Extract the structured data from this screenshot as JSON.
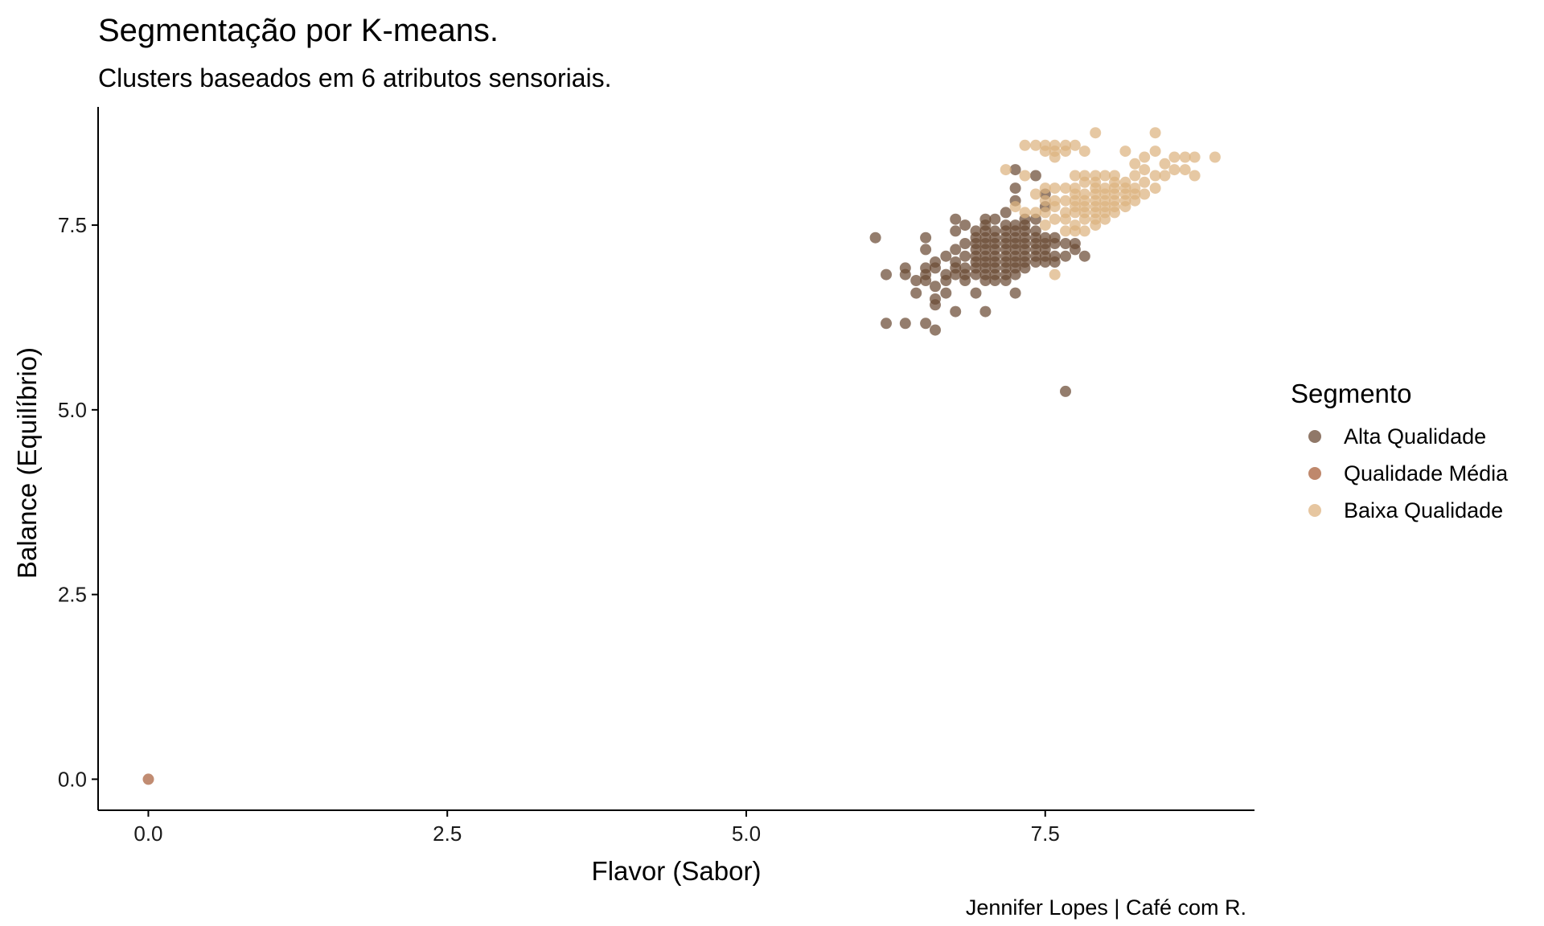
{
  "title": "Segmentação por K-means.",
  "subtitle": "Clusters baseados em 6 atributos sensoriais.",
  "caption": "Jennifer Lopes | Café com R.",
  "chart_data": {
    "type": "scatter",
    "xlabel": "Flavor (Sabor)",
    "ylabel": "Balance (Equilíbrio)",
    "xlim": [
      -0.42,
      9.25
    ],
    "ylim": [
      -0.42,
      9.1
    ],
    "x_ticks": [
      "0.0",
      "2.5",
      "5.0",
      "7.5"
    ],
    "y_ticks": [
      "0.0",
      "2.5",
      "5.0",
      "7.5"
    ],
    "grid": false,
    "legend": {
      "title": "Segmento",
      "position": "right"
    },
    "series": [
      {
        "name": "Alta Qualidade",
        "color": "#6b4b35",
        "points": [
          [
            6.08,
            7.33
          ],
          [
            6.17,
            6.83
          ],
          [
            6.17,
            6.17
          ],
          [
            6.33,
            6.17
          ],
          [
            6.33,
            6.92
          ],
          [
            6.33,
            6.83
          ],
          [
            6.42,
            6.75
          ],
          [
            6.42,
            6.58
          ],
          [
            6.5,
            7.33
          ],
          [
            6.5,
            7.17
          ],
          [
            6.5,
            6.92
          ],
          [
            6.5,
            6.83
          ],
          [
            6.5,
            6.75
          ],
          [
            6.5,
            6.17
          ],
          [
            6.58,
            6.67
          ],
          [
            6.58,
            6.5
          ],
          [
            6.58,
            6.42
          ],
          [
            6.58,
            6.08
          ],
          [
            6.58,
            6.92
          ],
          [
            6.58,
            7.0
          ],
          [
            6.67,
            6.83
          ],
          [
            6.67,
            6.58
          ],
          [
            6.67,
            6.75
          ],
          [
            6.67,
            7.08
          ],
          [
            6.75,
            7.58
          ],
          [
            6.75,
            7.42
          ],
          [
            6.75,
            7.17
          ],
          [
            6.75,
            7.0
          ],
          [
            6.75,
            6.92
          ],
          [
            6.75,
            6.33
          ],
          [
            6.75,
            6.83
          ],
          [
            6.83,
            7.5
          ],
          [
            6.83,
            7.25
          ],
          [
            6.83,
            7.08
          ],
          [
            6.83,
            6.92
          ],
          [
            6.83,
            6.83
          ],
          [
            6.83,
            6.75
          ],
          [
            6.92,
            7.42
          ],
          [
            6.92,
            7.33
          ],
          [
            6.92,
            7.25
          ],
          [
            6.92,
            7.17
          ],
          [
            6.92,
            7.08
          ],
          [
            6.92,
            7.0
          ],
          [
            6.92,
            6.92
          ],
          [
            6.92,
            6.83
          ],
          [
            6.92,
            6.58
          ],
          [
            7.0,
            7.58
          ],
          [
            7.0,
            7.5
          ],
          [
            7.0,
            7.42
          ],
          [
            7.0,
            7.33
          ],
          [
            7.0,
            7.25
          ],
          [
            7.0,
            7.17
          ],
          [
            7.0,
            7.08
          ],
          [
            7.0,
            7.0
          ],
          [
            7.0,
            6.92
          ],
          [
            7.0,
            6.83
          ],
          [
            7.0,
            6.75
          ],
          [
            7.0,
            6.33
          ],
          [
            7.08,
            7.58
          ],
          [
            7.08,
            7.42
          ],
          [
            7.08,
            7.33
          ],
          [
            7.08,
            7.25
          ],
          [
            7.08,
            7.17
          ],
          [
            7.08,
            7.08
          ],
          [
            7.08,
            7.0
          ],
          [
            7.08,
            6.92
          ],
          [
            7.08,
            6.83
          ],
          [
            7.08,
            6.75
          ],
          [
            7.17,
            7.67
          ],
          [
            7.17,
            7.5
          ],
          [
            7.17,
            7.42
          ],
          [
            7.17,
            7.33
          ],
          [
            7.17,
            7.25
          ],
          [
            7.17,
            7.17
          ],
          [
            7.17,
            7.08
          ],
          [
            7.17,
            7.0
          ],
          [
            7.17,
            6.92
          ],
          [
            7.17,
            6.83
          ],
          [
            7.17,
            6.75
          ],
          [
            7.25,
            8.25
          ],
          [
            7.25,
            8.0
          ],
          [
            7.25,
            7.83
          ],
          [
            7.25,
            7.5
          ],
          [
            7.25,
            7.42
          ],
          [
            7.25,
            7.33
          ],
          [
            7.25,
            7.25
          ],
          [
            7.25,
            7.17
          ],
          [
            7.25,
            7.08
          ],
          [
            7.25,
            7.0
          ],
          [
            7.25,
            6.92
          ],
          [
            7.25,
            6.83
          ],
          [
            7.25,
            6.58
          ],
          [
            7.33,
            7.5
          ],
          [
            7.33,
            7.42
          ],
          [
            7.33,
            7.33
          ],
          [
            7.33,
            7.25
          ],
          [
            7.33,
            7.17
          ],
          [
            7.33,
            7.08
          ],
          [
            7.33,
            7.0
          ],
          [
            7.33,
            6.92
          ],
          [
            7.33,
            7.58
          ],
          [
            7.42,
            8.17
          ],
          [
            7.42,
            7.58
          ],
          [
            7.42,
            7.42
          ],
          [
            7.42,
            7.33
          ],
          [
            7.42,
            7.25
          ],
          [
            7.42,
            7.17
          ],
          [
            7.42,
            7.08
          ],
          [
            7.42,
            7.0
          ],
          [
            7.5,
            7.92
          ],
          [
            7.5,
            7.75
          ],
          [
            7.5,
            7.33
          ],
          [
            7.5,
            7.25
          ],
          [
            7.5,
            7.17
          ],
          [
            7.5,
            7.08
          ],
          [
            7.5,
            7.0
          ],
          [
            7.58,
            7.33
          ],
          [
            7.58,
            7.25
          ],
          [
            7.58,
            7.08
          ],
          [
            7.58,
            7.0
          ],
          [
            7.67,
            7.25
          ],
          [
            7.67,
            7.08
          ],
          [
            7.67,
            5.25
          ],
          [
            7.75,
            7.25
          ],
          [
            7.75,
            7.17
          ],
          [
            7.83,
            7.08
          ]
        ]
      },
      {
        "name": "Qualidade Média",
        "color": "#a9603b",
        "points": [
          [
            0.0,
            0.0
          ]
        ]
      },
      {
        "name": "Baixa Qualidade",
        "color": "#ddb380",
        "points": [
          [
            7.17,
            8.25
          ],
          [
            7.25,
            7.75
          ],
          [
            7.33,
            8.58
          ],
          [
            7.33,
            8.17
          ],
          [
            7.33,
            7.67
          ],
          [
            7.42,
            8.58
          ],
          [
            7.42,
            7.92
          ],
          [
            7.42,
            7.67
          ],
          [
            7.5,
            8.58
          ],
          [
            7.5,
            8.5
          ],
          [
            7.5,
            8.0
          ],
          [
            7.5,
            7.83
          ],
          [
            7.5,
            7.67
          ],
          [
            7.5,
            7.5
          ],
          [
            7.58,
            8.58
          ],
          [
            7.58,
            8.5
          ],
          [
            7.58,
            8.42
          ],
          [
            7.58,
            8.0
          ],
          [
            7.58,
            7.83
          ],
          [
            7.58,
            7.75
          ],
          [
            7.58,
            7.58
          ],
          [
            7.58,
            6.83
          ],
          [
            7.67,
            8.58
          ],
          [
            7.67,
            8.5
          ],
          [
            7.67,
            8.0
          ],
          [
            7.67,
            7.83
          ],
          [
            7.67,
            7.67
          ],
          [
            7.67,
            7.58
          ],
          [
            7.67,
            7.42
          ],
          [
            7.75,
            8.58
          ],
          [
            7.75,
            8.17
          ],
          [
            7.75,
            8.0
          ],
          [
            7.75,
            7.92
          ],
          [
            7.75,
            7.83
          ],
          [
            7.75,
            7.75
          ],
          [
            7.75,
            7.67
          ],
          [
            7.75,
            7.5
          ],
          [
            7.75,
            7.42
          ],
          [
            7.83,
            8.5
          ],
          [
            7.83,
            8.17
          ],
          [
            7.83,
            8.08
          ],
          [
            7.83,
            7.92
          ],
          [
            7.83,
            7.83
          ],
          [
            7.83,
            7.75
          ],
          [
            7.83,
            7.67
          ],
          [
            7.83,
            7.58
          ],
          [
            7.83,
            7.42
          ],
          [
            7.92,
            8.75
          ],
          [
            7.92,
            8.17
          ],
          [
            7.92,
            8.08
          ],
          [
            7.92,
            8.0
          ],
          [
            7.92,
            7.92
          ],
          [
            7.92,
            7.83
          ],
          [
            7.92,
            7.75
          ],
          [
            7.92,
            7.67
          ],
          [
            7.92,
            7.58
          ],
          [
            7.92,
            7.5
          ],
          [
            8.0,
            8.17
          ],
          [
            8.0,
            8.0
          ],
          [
            8.0,
            7.92
          ],
          [
            8.0,
            7.83
          ],
          [
            8.0,
            7.75
          ],
          [
            8.0,
            7.67
          ],
          [
            8.0,
            7.58
          ],
          [
            8.08,
            8.17
          ],
          [
            8.08,
            8.08
          ],
          [
            8.08,
            8.0
          ],
          [
            8.08,
            7.92
          ],
          [
            8.08,
            7.83
          ],
          [
            8.08,
            7.75
          ],
          [
            8.08,
            7.67
          ],
          [
            8.17,
            8.5
          ],
          [
            8.17,
            8.08
          ],
          [
            8.17,
            8.0
          ],
          [
            8.17,
            7.92
          ],
          [
            8.17,
            7.83
          ],
          [
            8.17,
            7.75
          ],
          [
            8.25,
            8.33
          ],
          [
            8.25,
            8.17
          ],
          [
            8.25,
            8.0
          ],
          [
            8.25,
            7.92
          ],
          [
            8.25,
            7.83
          ],
          [
            8.33,
            8.42
          ],
          [
            8.33,
            8.25
          ],
          [
            8.33,
            8.08
          ],
          [
            8.33,
            7.92
          ],
          [
            8.42,
            8.75
          ],
          [
            8.42,
            8.5
          ],
          [
            8.42,
            8.17
          ],
          [
            8.42,
            8.0
          ],
          [
            8.5,
            8.33
          ],
          [
            8.5,
            8.17
          ],
          [
            8.58,
            8.42
          ],
          [
            8.58,
            8.25
          ],
          [
            8.67,
            8.42
          ],
          [
            8.67,
            8.25
          ],
          [
            8.75,
            8.42
          ],
          [
            8.75,
            8.17
          ],
          [
            8.92,
            8.42
          ]
        ]
      }
    ]
  }
}
